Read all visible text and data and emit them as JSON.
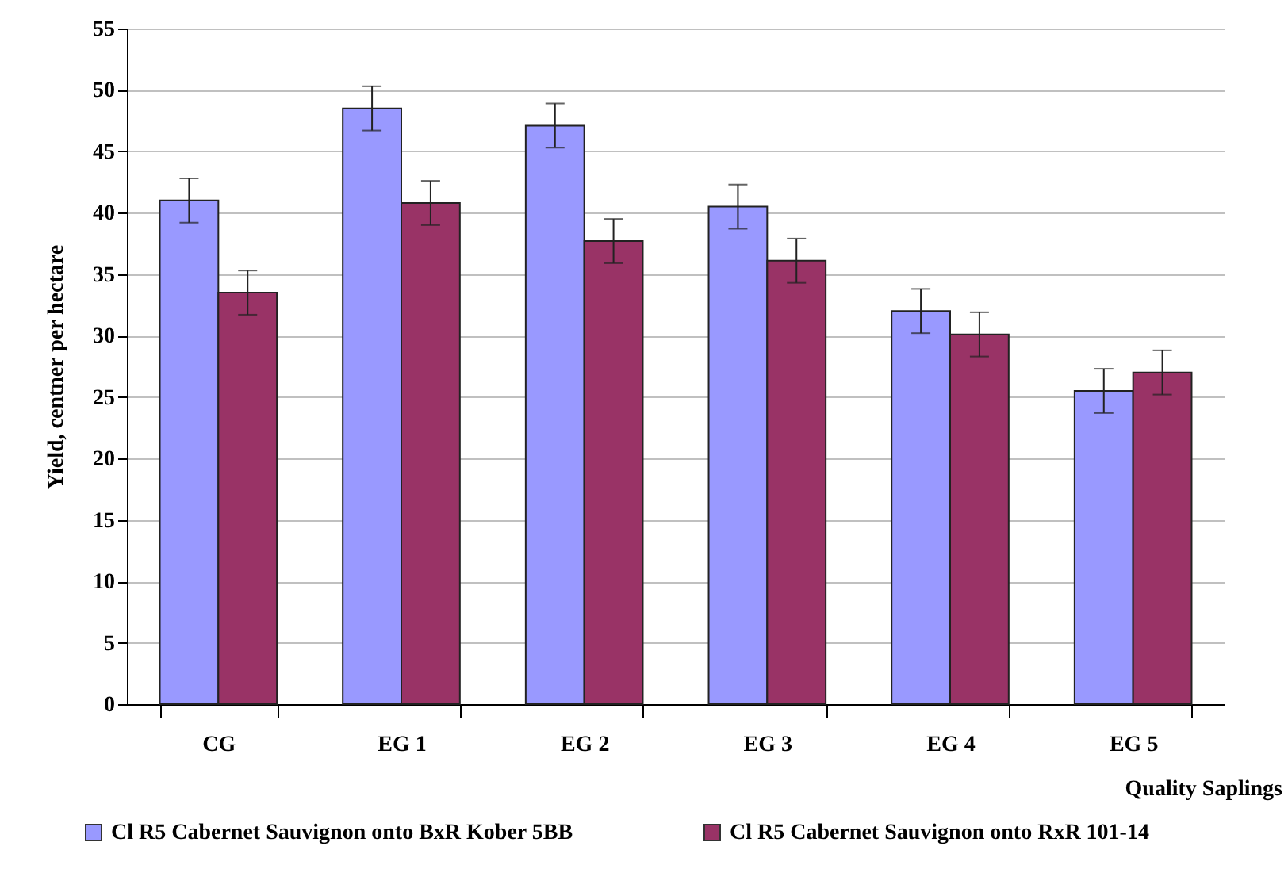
{
  "chart_data": {
    "type": "bar",
    "xlabel": "Quality Saplings",
    "ylabel": "Yield,  centner per hectare",
    "categories": [
      "CG",
      "EG 1",
      "EG 2",
      "EG 3",
      "EG 4",
      "EG 5"
    ],
    "series": [
      {
        "name": "Cl R5 Cabernet Sauvignon onto BxR Kober 5BB",
        "color": "#9999ff",
        "values": [
          41.0,
          48.5,
          47.1,
          40.5,
          32.0,
          25.5
        ],
        "errors": [
          1.8,
          1.8,
          1.8,
          1.8,
          1.8,
          1.8
        ]
      },
      {
        "name": "Cl R5 Cabernet Sauvignon onto RxR 101-14",
        "color": "#993366",
        "values": [
          33.5,
          40.8,
          37.7,
          36.1,
          30.1,
          27.0
        ],
        "errors": [
          1.8,
          1.8,
          1.8,
          1.8,
          1.8,
          1.8
        ]
      }
    ],
    "ylim": [
      0,
      55
    ],
    "yticks": [
      0,
      5,
      10,
      15,
      20,
      25,
      30,
      35,
      40,
      45,
      50,
      55
    ],
    "grid": "y",
    "legend": "bottom"
  }
}
